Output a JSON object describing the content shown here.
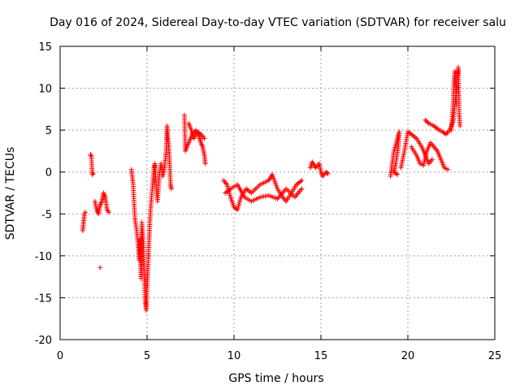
{
  "chart_data": {
    "type": "scatter",
    "title": "Day 016 of 2024, Sidereal Day-to-day VTEC variation (SDTVAR) for receiver salu",
    "xlabel": "GPS time / hours",
    "ylabel": "SDTVAR / TECUs",
    "xlim": [
      0,
      25
    ],
    "ylim": [
      -20,
      15
    ],
    "xticks": [
      0,
      5,
      10,
      15,
      20,
      25
    ],
    "yticks": [
      -20,
      -15,
      -10,
      -5,
      0,
      5,
      10,
      15
    ],
    "grid": true,
    "marker": "+",
    "color": "#ff0000",
    "series": [
      {
        "name": "SDTVAR",
        "segments": [
          [
            [
              1.3,
              -7.0
            ],
            [
              1.35,
              -6.0
            ],
            [
              1.4,
              -5.0
            ],
            [
              1.45,
              -4.8
            ]
          ],
          [
            [
              1.75,
              2.1
            ],
            [
              1.8,
              1.8
            ],
            [
              1.85,
              -0.3
            ],
            [
              1.9,
              -0.2
            ]
          ],
          [
            [
              2.0,
              -3.5
            ],
            [
              2.1,
              -4.5
            ],
            [
              2.2,
              -5.0
            ],
            [
              2.3,
              -4.0
            ],
            [
              2.4,
              -3.5
            ],
            [
              2.5,
              -2.5
            ],
            [
              2.6,
              -3.0
            ],
            [
              2.7,
              -4.5
            ],
            [
              2.8,
              -4.8
            ]
          ],
          [
            [
              2.3,
              -11.4
            ]
          ],
          [
            [
              4.1,
              0.3
            ],
            [
              4.2,
              -1.5
            ],
            [
              4.3,
              -5.5
            ],
            [
              4.4,
              -7.0
            ],
            [
              4.5,
              -9.0
            ],
            [
              4.55,
              -10.5
            ],
            [
              4.6,
              -8.0
            ],
            [
              4.65,
              -12.7
            ],
            [
              4.7,
              -6.0
            ],
            [
              4.8,
              -9.0
            ],
            [
              4.85,
              -13.0
            ],
            [
              4.9,
              -15.5
            ],
            [
              4.95,
              -16.5
            ],
            [
              5.0,
              -14.0
            ],
            [
              5.05,
              -11.5
            ],
            [
              5.1,
              -9.0
            ],
            [
              5.15,
              -6.5
            ],
            [
              5.2,
              -4.5
            ],
            [
              5.3,
              -2.0
            ],
            [
              5.4,
              0.5
            ],
            [
              5.45,
              1.0
            ],
            [
              5.5,
              -1.0
            ],
            [
              5.6,
              -3.5
            ],
            [
              5.7,
              -0.5
            ],
            [
              5.8,
              1.0
            ],
            [
              5.9,
              -0.5
            ],
            [
              6.0,
              0.5
            ],
            [
              6.1,
              2.5
            ],
            [
              6.15,
              5.5
            ],
            [
              6.2,
              4.0
            ],
            [
              6.25,
              3.0
            ],
            [
              6.3,
              1.0
            ],
            [
              6.35,
              -1.5
            ],
            [
              6.4,
              -2.0
            ]
          ],
          [
            [
              7.15,
              6.8
            ],
            [
              7.2,
              2.5
            ],
            [
              7.4,
              3.5
            ],
            [
              7.6,
              4.5
            ],
            [
              7.8,
              5.0
            ],
            [
              8.0,
              4.2
            ],
            [
              8.1,
              3.5
            ],
            [
              8.2,
              3.0
            ],
            [
              8.3,
              2.0
            ],
            [
              8.35,
              1.0
            ]
          ],
          [
            [
              7.4,
              5.8
            ],
            [
              7.55,
              5.0
            ],
            [
              7.7,
              4.0
            ],
            [
              7.9,
              4.8
            ],
            [
              8.1,
              4.5
            ],
            [
              8.3,
              4.0
            ]
          ],
          [
            [
              9.4,
              -1.0
            ],
            [
              9.6,
              -1.5
            ],
            [
              9.8,
              -3.0
            ],
            [
              10.0,
              -4.2
            ],
            [
              10.2,
              -4.5
            ],
            [
              10.4,
              -3.0
            ],
            [
              10.7,
              -2.0
            ],
            [
              11.0,
              -2.5
            ],
            [
              11.5,
              -1.5
            ],
            [
              12.0,
              -1.0
            ],
            [
              12.2,
              -0.3
            ],
            [
              12.5,
              -2.0
            ],
            [
              12.8,
              -3.0
            ],
            [
              13.0,
              -3.5
            ],
            [
              13.3,
              -2.5
            ],
            [
              13.6,
              -1.5
            ],
            [
              13.9,
              -1.0
            ]
          ],
          [
            [
              9.5,
              -2.5
            ],
            [
              9.8,
              -2.0
            ],
            [
              10.2,
              -1.5
            ],
            [
              10.6,
              -3.0
            ],
            [
              11.0,
              -3.5
            ],
            [
              11.5,
              -3.0
            ],
            [
              12.0,
              -2.8
            ],
            [
              12.5,
              -3.2
            ],
            [
              13.0,
              -2.0
            ],
            [
              13.5,
              -3.0
            ],
            [
              13.9,
              -2.0
            ]
          ],
          [
            [
              14.4,
              0.5
            ],
            [
              14.5,
              1.2
            ],
            [
              14.7,
              0.5
            ],
            [
              14.9,
              1.0
            ],
            [
              15.0,
              0.0
            ],
            [
              15.1,
              -0.5
            ],
            [
              15.3,
              0.0
            ],
            [
              15.4,
              -0.2
            ]
          ],
          [
            [
              19.0,
              -0.5
            ],
            [
              19.1,
              1.0
            ],
            [
              19.2,
              2.5
            ],
            [
              19.4,
              4.0
            ],
            [
              19.5,
              4.8
            ],
            [
              19.45,
              3.0
            ],
            [
              19.3,
              1.0
            ],
            [
              19.2,
              0.0
            ],
            [
              19.4,
              -0.3
            ]
          ],
          [
            [
              19.6,
              0.5
            ],
            [
              19.8,
              2.5
            ],
            [
              20.0,
              4.8
            ],
            [
              20.2,
              4.5
            ],
            [
              20.5,
              4.0
            ],
            [
              20.8,
              3.0
            ],
            [
              21.0,
              2.0
            ],
            [
              21.2,
              1.0
            ],
            [
              21.4,
              1.5
            ]
          ],
          [
            [
              20.2,
              3.0
            ],
            [
              20.5,
              2.0
            ],
            [
              20.7,
              1.0
            ],
            [
              20.9,
              0.8
            ],
            [
              21.1,
              2.5
            ],
            [
              21.3,
              3.5
            ],
            [
              21.5,
              3.0
            ],
            [
              21.7,
              2.5
            ],
            [
              21.9,
              1.5
            ],
            [
              22.1,
              0.5
            ],
            [
              22.3,
              0.3
            ]
          ],
          [
            [
              21.0,
              6.2
            ],
            [
              21.2,
              5.8
            ],
            [
              21.5,
              5.5
            ],
            [
              21.8,
              5.0
            ],
            [
              22.0,
              4.8
            ],
            [
              22.2,
              4.5
            ],
            [
              22.4,
              5.0
            ],
            [
              22.6,
              6.0
            ],
            [
              22.7,
              8.0
            ],
            [
              22.8,
              10.0
            ],
            [
              22.85,
              11.5
            ],
            [
              22.9,
              12.5
            ],
            [
              22.95,
              7.0
            ],
            [
              23.0,
              5.5
            ]
          ],
          [
            [
              22.5,
              5.0
            ],
            [
              22.6,
              8.0
            ],
            [
              22.65,
              10.5
            ],
            [
              22.7,
              12.0
            ],
            [
              22.75,
              10.0
            ],
            [
              22.8,
              8.0
            ]
          ]
        ]
      }
    ]
  }
}
